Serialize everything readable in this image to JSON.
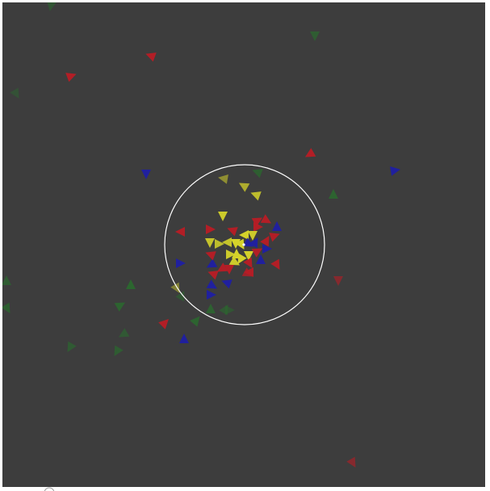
{
  "colors": {
    "background": "#3d3d3d",
    "page": "#ffffff",
    "selection_ring": "#ffffff",
    "center_marker": "#ffffff",
    "team_red": "#b81c25",
    "team_blue": "#1f1fa3",
    "team_green": "#2a6a2e",
    "team_yellow": "#d4d22a"
  },
  "icons": {
    "corner": "circle-outline-icon"
  },
  "agents": [
    {
      "team": "green",
      "heading": 100,
      "alpha": 0.55
    },
    {
      "team": "green",
      "heading": 90,
      "alpha": 0.7
    },
    {
      "team": "red",
      "heading": 200,
      "alpha": 0.95
    },
    {
      "team": "red",
      "heading": -20,
      "alpha": 0.95
    },
    {
      "team": "green",
      "heading": 60,
      "alpha": 0.45
    },
    {
      "team": "red",
      "heading": 150,
      "alpha": 0.95
    },
    {
      "team": "blue",
      "heading": 90,
      "alpha": 0.95
    },
    {
      "team": "blue",
      "heading": -10,
      "alpha": 0.95
    },
    {
      "team": "green",
      "heading": 200,
      "alpha": 0.75
    },
    {
      "team": "yellow",
      "heading": 190,
      "alpha": 0.55
    },
    {
      "team": "green",
      "heading": -90,
      "alpha": 0.85
    },
    {
      "team": "yellow",
      "heading": 210,
      "alpha": 0.75
    },
    {
      "team": "yellow",
      "heading": 200,
      "alpha": 0.85
    },
    {
      "team": "red",
      "heading": 180,
      "alpha": 0.95
    },
    {
      "team": "red",
      "heading": 90,
      "alpha": 0.6
    },
    {
      "team": "green",
      "heading": -90,
      "alpha": 0.9
    },
    {
      "team": "green",
      "heading": -90,
      "alpha": 0.7
    },
    {
      "team": "blue",
      "heading": 0,
      "alpha": 0.95
    },
    {
      "team": "green",
      "heading": -60,
      "alpha": 0.55
    },
    {
      "team": "yellow",
      "heading": 60,
      "alpha": 0.45
    },
    {
      "team": "green",
      "heading": -30,
      "alpha": 0.85
    },
    {
      "team": "green",
      "heading": 60,
      "alpha": 0.75
    },
    {
      "team": "blue",
      "heading": -90,
      "alpha": 0.95
    },
    {
      "team": "red",
      "heading": -45,
      "alpha": 0.95
    },
    {
      "team": "green",
      "heading": -50,
      "alpha": 0.85
    },
    {
      "team": "green",
      "heading": -60,
      "alpha": 0.6
    },
    {
      "team": "green",
      "heading": 150,
      "alpha": 0.6
    },
    {
      "team": "green",
      "heading": 120,
      "alpha": 0.65
    },
    {
      "team": "green",
      "heading": 120,
      "alpha": 0.7
    },
    {
      "team": "blue",
      "heading": 0,
      "alpha": 0.95
    },
    {
      "team": "red",
      "heading": 60,
      "alpha": 0.6
    },
    {
      "team": "yellow",
      "heading": 90,
      "alpha": 0.95
    },
    {
      "team": "red",
      "heading": 0,
      "alpha": 0.95
    },
    {
      "team": "red",
      "heading": 200,
      "alpha": 0.95
    },
    {
      "team": "yellow",
      "heading": 90,
      "alpha": 0.9
    },
    {
      "team": "yellow",
      "heading": 0,
      "alpha": 0.85
    },
    {
      "team": "yellow",
      "heading": 180,
      "alpha": 0.9
    },
    {
      "team": "yellow",
      "heading": 90,
      "alpha": 1.0
    },
    {
      "team": "yellow",
      "heading": 180,
      "alpha": 1.0
    },
    {
      "team": "yellow",
      "heading": 60,
      "alpha": 1.0
    },
    {
      "team": "yellow",
      "heading": -90,
      "alpha": 1.0
    },
    {
      "team": "yellow",
      "heading": 90,
      "alpha": 1.0
    },
    {
      "team": "yellow",
      "heading": 120,
      "alpha": 1.0
    },
    {
      "team": "yellow",
      "heading": 30,
      "alpha": 0.95
    },
    {
      "team": "blue",
      "heading": 30,
      "alpha": 0.95
    },
    {
      "team": "blue",
      "heading": -60,
      "alpha": 0.95
    },
    {
      "team": "blue",
      "heading": -90,
      "alpha": 0.95
    },
    {
      "team": "blue",
      "heading": 0,
      "alpha": 0.95
    },
    {
      "team": "blue",
      "heading": -90,
      "alpha": 0.95
    },
    {
      "team": "blue",
      "heading": 150,
      "alpha": 0.95
    },
    {
      "team": "blue",
      "heading": 200,
      "alpha": 0.95
    },
    {
      "team": "blue",
      "heading": 30,
      "alpha": 0.95
    },
    {
      "team": "red",
      "heading": -30,
      "alpha": 0.95
    },
    {
      "team": "red",
      "heading": -60,
      "alpha": 0.95
    },
    {
      "team": "red",
      "heading": -20,
      "alpha": 0.95
    },
    {
      "team": "red",
      "heading": 30,
      "alpha": 0.95
    },
    {
      "team": "red",
      "heading": -30,
      "alpha": 0.95
    },
    {
      "team": "red",
      "heading": 60,
      "alpha": 0.95
    },
    {
      "team": "red",
      "heading": 180,
      "alpha": 0.95
    },
    {
      "team": "red",
      "heading": 90,
      "alpha": 0.95
    },
    {
      "team": "red",
      "heading": 200,
      "alpha": 0.95
    },
    {
      "team": "red",
      "heading": 150,
      "alpha": 0.95
    },
    {
      "team": "red",
      "heading": 200,
      "alpha": 0.95
    },
    {
      "team": "red",
      "heading": 30,
      "alpha": 0.8
    },
    {
      "team": "red",
      "heading": 60,
      "alpha": 0.95
    },
    {
      "team": "red",
      "heading": 0,
      "alpha": 0.95
    },
    {
      "team": "yellow",
      "heading": 90,
      "alpha": 0.95
    },
    {
      "team": "yellow",
      "heading": 0,
      "alpha": 0.95
    },
    {
      "team": "green",
      "heading": -90,
      "alpha": 0.8
    },
    {
      "team": "green",
      "heading": 0,
      "alpha": 0.55
    }
  ]
}
